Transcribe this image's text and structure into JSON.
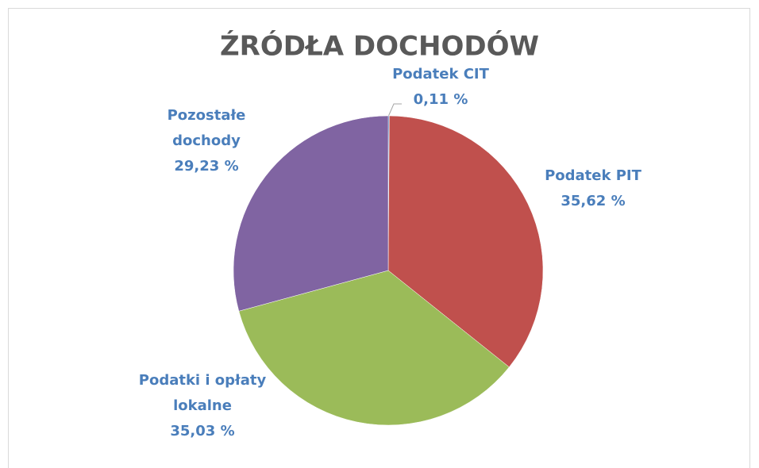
{
  "chart_data": {
    "type": "pie",
    "title": "ŹRÓDŁA DOCHODÓW",
    "categories": [
      "Podatek CIT",
      "Podatek PIT",
      "Podatki i opłaty lokalne",
      "Pozostałe dochody"
    ],
    "values": [
      0.11,
      35.62,
      35.03,
      29.23
    ],
    "value_labels": [
      "0,11 %",
      "35,62 %",
      "35,03 %",
      "29,23 %"
    ],
    "colors": [
      "#4f81bd",
      "#c0504d",
      "#9bbb59",
      "#8064a2"
    ]
  }
}
